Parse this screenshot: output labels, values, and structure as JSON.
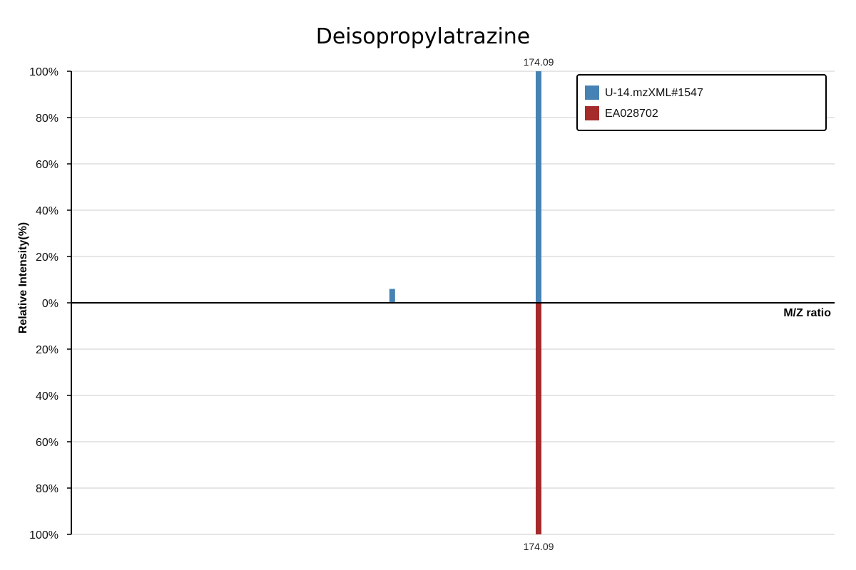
{
  "chart_data": {
    "type": "bar",
    "title": "Deisopropylatrazine",
    "xlabel": "M/Z ratio",
    "ylabel": "Relative Intensity(%)",
    "ylim": [
      -100,
      100
    ],
    "y_ticks": [
      100,
      80,
      60,
      40,
      20,
      0,
      -20,
      -40,
      -60,
      -80,
      -100
    ],
    "y_tick_labels": [
      "100%",
      "80%",
      "60%",
      "40%",
      "20%",
      "0%",
      "20%",
      "40%",
      "60%",
      "80%",
      "100%"
    ],
    "grid": true,
    "legend_position": "top-right",
    "series": [
      {
        "name": "U-14.mzXML#1547",
        "color": "#4682b4",
        "direction": "up",
        "peaks": [
          {
            "mz": 146.06,
            "intensity": 6,
            "label": ""
          },
          {
            "mz": 174.09,
            "intensity": 100,
            "label": "174.09"
          }
        ]
      },
      {
        "name": "EA028702",
        "color": "#a52a2a",
        "direction": "down",
        "peaks": [
          {
            "mz": 174.09,
            "intensity": 100,
            "label": "174.09"
          }
        ]
      }
    ]
  }
}
